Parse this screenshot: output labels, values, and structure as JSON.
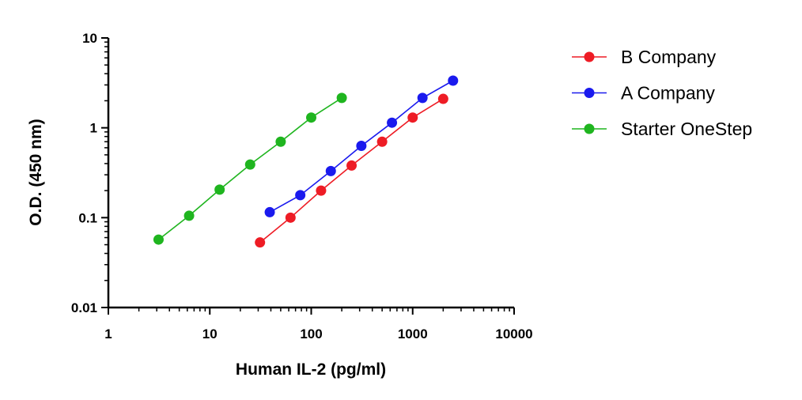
{
  "chart_data": {
    "type": "scatter",
    "title": "",
    "xlabel": "Human IL-2 (pg/ml)",
    "ylabel": "O.D. (450 nm)",
    "xscale": "log",
    "yscale": "log",
    "xlim": [
      1,
      10000
    ],
    "ylim": [
      0.01,
      10
    ],
    "xticks": [
      1,
      10,
      100,
      1000,
      10000
    ],
    "xtick_labels": [
      "1",
      "10",
      "100",
      "1000",
      "10000"
    ],
    "yticks": [
      0.01,
      0.1,
      1,
      10
    ],
    "ytick_labels": [
      "0.01",
      "0.1",
      "1",
      "10"
    ],
    "grid": false,
    "legend_position": "top-right",
    "lines_connect_points": true,
    "series": [
      {
        "name": "B Company",
        "color": "#ee1c25",
        "x": [
          31.25,
          62.5,
          125,
          250,
          500,
          1000,
          2000
        ],
        "y": [
          0.053,
          0.1,
          0.2,
          0.38,
          0.7,
          1.3,
          2.1
        ]
      },
      {
        "name": "A Company",
        "color": "#1a1aee",
        "x": [
          39,
          78,
          156,
          312,
          625,
          1250,
          2500
        ],
        "y": [
          0.115,
          0.178,
          0.33,
          0.63,
          1.14,
          2.15,
          3.35
        ]
      },
      {
        "name": "Starter OneStep",
        "color": "#1fb51f",
        "x": [
          3.125,
          6.25,
          12.5,
          25,
          50,
          100,
          200
        ],
        "y": [
          0.057,
          0.105,
          0.205,
          0.39,
          0.7,
          1.3,
          2.15
        ]
      }
    ]
  }
}
